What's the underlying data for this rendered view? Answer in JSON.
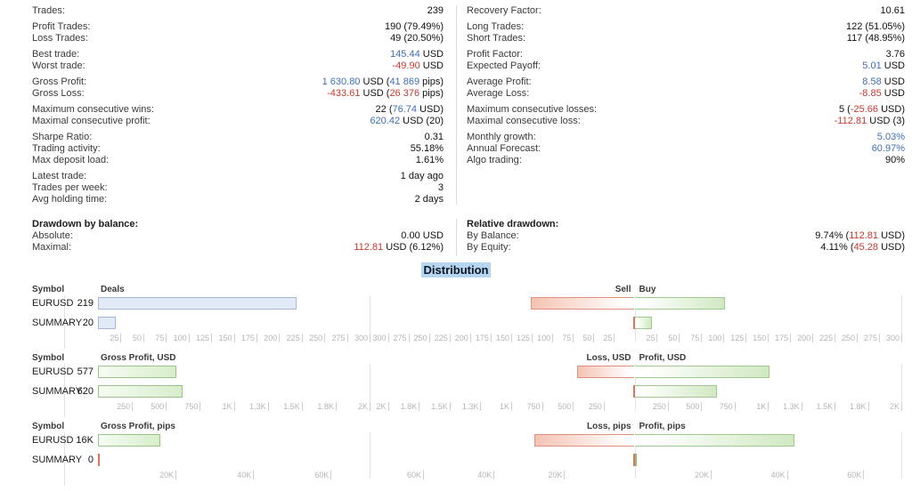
{
  "title": {
    "distribution": "Distribution"
  },
  "colors": {
    "blue": "#3f6fb5",
    "red": "#c9392c",
    "hl": "#b5d5f0",
    "bar_blue_fill": "#e2eaf8",
    "bar_blue_border": "#a6b8da",
    "bar_green_border": "#98c286",
    "bar_sell_border": "#e0917c",
    "bar_buy_border": "#a0c98e",
    "sliver_red": "#e2705c",
    "sliver_green": "#8fbf77",
    "axis_text": "#b5b5b5",
    "grid": "#e2e2e2",
    "divider": "#dcdcdc"
  },
  "stats": {
    "left_top": [
      [
        {
          "label": "Trades:",
          "parts": [
            {
              "t": "239"
            }
          ]
        }
      ],
      [
        {
          "label": "Profit Trades:",
          "parts": [
            {
              "t": "190 (79.49%)"
            }
          ]
        },
        {
          "label": "Loss Trades:",
          "parts": [
            {
              "t": "49 (20.50%)"
            }
          ]
        }
      ],
      [
        {
          "label": "Best trade:",
          "parts": [
            {
              "t": "145.44",
              "c": "blue"
            },
            {
              "t": " USD"
            }
          ]
        },
        {
          "label": "Worst trade:",
          "parts": [
            {
              "t": "-49.90",
              "c": "red"
            },
            {
              "t": " USD"
            }
          ]
        }
      ],
      [
        {
          "label": "Gross Profit:",
          "parts": [
            {
              "t": "1 630.80",
              "c": "blue"
            },
            {
              "t": " USD ("
            },
            {
              "t": "41 869",
              "c": "blue"
            },
            {
              "t": " pips)"
            }
          ]
        },
        {
          "label": "Gross Loss:",
          "parts": [
            {
              "t": "-433.61",
              "c": "red"
            },
            {
              "t": " USD ("
            },
            {
              "t": "26 376",
              "c": "red"
            },
            {
              "t": " pips)"
            }
          ]
        }
      ],
      [
        {
          "label": "Maximum consecutive wins:",
          "parts": [
            {
              "t": "22 ("
            },
            {
              "t": "76.74",
              "c": "blue"
            },
            {
              "t": " USD)"
            }
          ]
        },
        {
          "label": "Maximal consecutive profit:",
          "parts": [
            {
              "t": "620.42",
              "c": "blue"
            },
            {
              "t": " USD (20)"
            }
          ]
        }
      ],
      [
        {
          "label": "Sharpe Ratio:",
          "parts": [
            {
              "t": "0.31"
            }
          ]
        },
        {
          "label": "Trading activity:",
          "parts": [
            {
              "t": "55.18%"
            }
          ]
        },
        {
          "label": "Max deposit load:",
          "parts": [
            {
              "t": "1.61%"
            }
          ]
        }
      ],
      [
        {
          "label": "Latest trade:",
          "parts": [
            {
              "t": "1 day ago"
            }
          ]
        },
        {
          "label": "Trades per week:",
          "parts": [
            {
              "t": "3"
            }
          ]
        },
        {
          "label": "Avg holding time:",
          "parts": [
            {
              "t": "2 days"
            }
          ]
        }
      ]
    ],
    "left_bottom": [
      {
        "label": "Drawdown by balance:",
        "bold": true,
        "parts": []
      },
      {
        "label": "Absolute:",
        "parts": [
          {
            "t": "0.00 USD"
          }
        ]
      },
      {
        "label": "Maximal:",
        "parts": [
          {
            "t": "112.81",
            "c": "red"
          },
          {
            "t": " USD (6.12%)"
          }
        ]
      }
    ],
    "right_top": [
      [
        {
          "label": "Recovery Factor:",
          "parts": [
            {
              "t": "10.61"
            }
          ]
        }
      ],
      [
        {
          "label": "Long Trades:",
          "parts": [
            {
              "t": "122 (51.05%)"
            }
          ]
        },
        {
          "label": "Short Trades:",
          "parts": [
            {
              "t": "117 (48.95%)"
            }
          ]
        }
      ],
      [
        {
          "label": "Profit Factor:",
          "parts": [
            {
              "t": "3.76"
            }
          ]
        },
        {
          "label": "Expected Payoff:",
          "parts": [
            {
              "t": "5.01",
              "c": "blue"
            },
            {
              "t": " USD"
            }
          ]
        }
      ],
      [
        {
          "label": "Average Profit:",
          "parts": [
            {
              "t": "8.58",
              "c": "blue"
            },
            {
              "t": " USD"
            }
          ]
        },
        {
          "label": "Average Loss:",
          "parts": [
            {
              "t": "-8.85",
              "c": "red"
            },
            {
              "t": " USD"
            }
          ]
        }
      ],
      [
        {
          "label": "Maximum consecutive losses:",
          "parts": [
            {
              "t": "5 ("
            },
            {
              "t": "-25.66",
              "c": "red"
            },
            {
              "t": " USD)"
            }
          ]
        },
        {
          "label": "Maximal consecutive loss:",
          "parts": [
            {
              "t": "-112.81",
              "c": "red"
            },
            {
              "t": " USD (3)"
            }
          ]
        }
      ],
      [
        {
          "label": "Monthly growth:",
          "parts": [
            {
              "t": "5.03%",
              "c": "blue"
            }
          ]
        },
        {
          "label": "Annual Forecast:",
          "parts": [
            {
              "t": "60.97%",
              "c": "blue"
            }
          ]
        },
        {
          "label": "Algo trading:",
          "parts": [
            {
              "t": "90%"
            }
          ]
        }
      ]
    ],
    "right_bottom": [
      {
        "label": "Relative drawdown:",
        "bold": true,
        "parts": []
      },
      {
        "label": "By Balance:",
        "parts": [
          {
            "t": "9.74% ("
          },
          {
            "t": "112.81",
            "c": "red"
          },
          {
            "t": " USD)"
          }
        ]
      },
      {
        "label": "By Equity:",
        "parts": [
          {
            "t": "4.11% ("
          },
          {
            "t": "45.28",
            "c": "red"
          },
          {
            "t": " USD)"
          }
        ]
      }
    ]
  },
  "chart_data": [
    {
      "type": "bar",
      "id": "deals",
      "symbol_header": "Symbol",
      "symbols": [
        "EURUSD",
        "SUMMARY"
      ],
      "left": {
        "title": "Deals",
        "style": "blue",
        "max": 300,
        "ticks": [
          25,
          50,
          75,
          100,
          125,
          150,
          175,
          200,
          225,
          250,
          275,
          300
        ],
        "tick_labels": [
          "25",
          "50",
          "75",
          "100",
          "125",
          "150",
          "175",
          "200",
          "225",
          "250",
          "275",
          "300"
        ],
        "rows": [
          {
            "label": "219",
            "value": 219
          },
          {
            "label": "20",
            "value": 20
          }
        ]
      },
      "right": {
        "neg_title": "Sell",
        "pos_title": "Buy",
        "max": 300,
        "ticks": [
          25,
          50,
          75,
          100,
          125,
          150,
          175,
          200,
          225,
          250,
          275,
          300
        ],
        "tick_labels": [
          "25",
          "50",
          "75",
          "100",
          "125",
          "150",
          "175",
          "200",
          "225",
          "250",
          "275",
          "300"
        ],
        "rows": [
          {
            "neg": 117,
            "pos": 102
          },
          {
            "neg": 0,
            "pos": 20
          }
        ]
      }
    },
    {
      "type": "bar",
      "id": "gross-profit-usd",
      "symbol_header": "Symbol",
      "symbols": [
        "EURUSD",
        "SUMMARY"
      ],
      "left": {
        "title": "Gross Profit, USD",
        "style": "green",
        "max": 2000,
        "ticks": [
          250,
          500,
          750,
          1000,
          1250,
          1500,
          1750,
          2000
        ],
        "tick_labels": [
          "250",
          "500",
          "750",
          "1K",
          "1.3K",
          "1.5K",
          "1.8K",
          "2K"
        ],
        "rows": [
          {
            "label": "577",
            "value": 577
          },
          {
            "label": "620",
            "value": 620
          }
        ]
      },
      "right": {
        "neg_title": "Loss, USD",
        "pos_title": "Profit, USD",
        "max": 2000,
        "ticks": [
          250,
          500,
          750,
          1000,
          1250,
          1500,
          1750,
          2000
        ],
        "tick_labels": [
          "250",
          "500",
          "750",
          "1K",
          "1.3K",
          "1.5K",
          "1.8K",
          "2K"
        ],
        "rows": [
          {
            "neg": 433,
            "pos": 1010
          },
          {
            "neg": 0,
            "pos": 620
          }
        ]
      }
    },
    {
      "type": "bar",
      "id": "gross-profit-pips",
      "symbol_header": "Symbol",
      "symbols": [
        "EURUSD",
        "SUMMARY"
      ],
      "left": {
        "title": "Gross Profit, pips",
        "style": "green",
        "max": 70000,
        "ticks": [
          20000,
          40000,
          60000
        ],
        "tick_labels": [
          "20K",
          "40K",
          "60K"
        ],
        "rows": [
          {
            "label": "16K",
            "value": 16000
          },
          {
            "label": "0",
            "value": 0
          }
        ]
      },
      "right": {
        "neg_title": "Loss, pips",
        "pos_title": "Profit, pips",
        "max": 70000,
        "ticks": [
          20000,
          40000,
          60000
        ],
        "tick_labels": [
          "20K",
          "40K",
          "60K"
        ],
        "rows": [
          {
            "neg": 26376,
            "pos": 41869
          },
          {
            "neg": 0,
            "pos": 0
          }
        ]
      }
    }
  ]
}
